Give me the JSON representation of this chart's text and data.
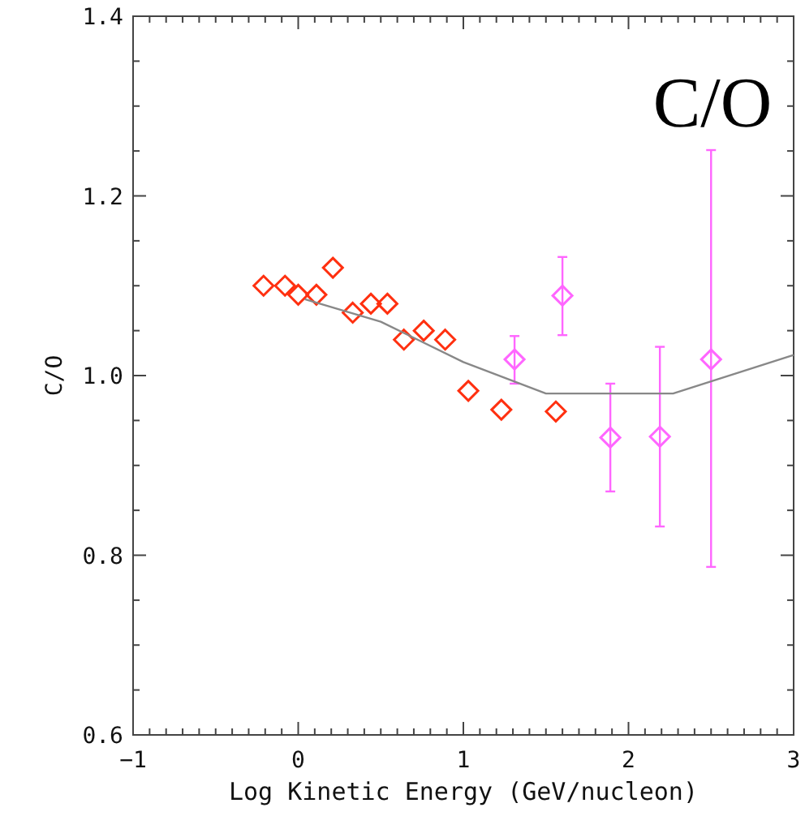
{
  "chart_data": {
    "type": "scatter",
    "title": "C/O",
    "xlabel": "Log Kinetic Energy (GeV/nucleon)",
    "ylabel": "C/O",
    "xlim": [
      -1,
      3
    ],
    "xticks": [
      {
        "value": -1,
        "label": "−1"
      },
      0,
      1,
      2,
      3
    ],
    "ylim": [
      0.6,
      1.4
    ],
    "yticks": [
      0.6,
      0.8,
      {
        "value": 1,
        "label": "1.0"
      },
      1.2,
      1.4
    ],
    "grid": false,
    "marker": "diamond",
    "series": [
      {
        "color": "#ff3010",
        "x": [
          -0.21,
          -0.08,
          0.0,
          0.11,
          0.21,
          0.33,
          0.44,
          0.54,
          0.64,
          0.76,
          0.89,
          1.03,
          1.23,
          1.56
        ],
        "values": [
          1.1,
          1.1,
          1.09,
          1.09,
          1.12,
          1.07,
          1.08,
          1.08,
          1.04,
          1.05,
          1.04,
          0.983,
          0.962,
          0.96
        ]
      },
      {
        "color": "#ff66ff",
        "x": [
          1.31,
          1.6,
          1.89,
          2.19,
          2.5
        ],
        "values": [
          1.018,
          1.089,
          0.931,
          0.932,
          1.018
        ],
        "errors": [
          [
            0.991,
            1.044
          ],
          [
            1.045,
            1.132
          ],
          [
            0.871,
            0.991
          ],
          [
            0.832,
            1.032
          ],
          [
            0.787,
            1.251
          ]
        ]
      },
      {
        "type": "line",
        "color": "#888888",
        "marker": "none",
        "line_style": "solid",
        "x": [
          0.04,
          0.5,
          1.0,
          1.5,
          2.27,
          3.0
        ],
        "values": [
          1.085,
          1.06,
          1.015,
          0.98,
          0.98,
          1.023
        ]
      }
    ]
  }
}
